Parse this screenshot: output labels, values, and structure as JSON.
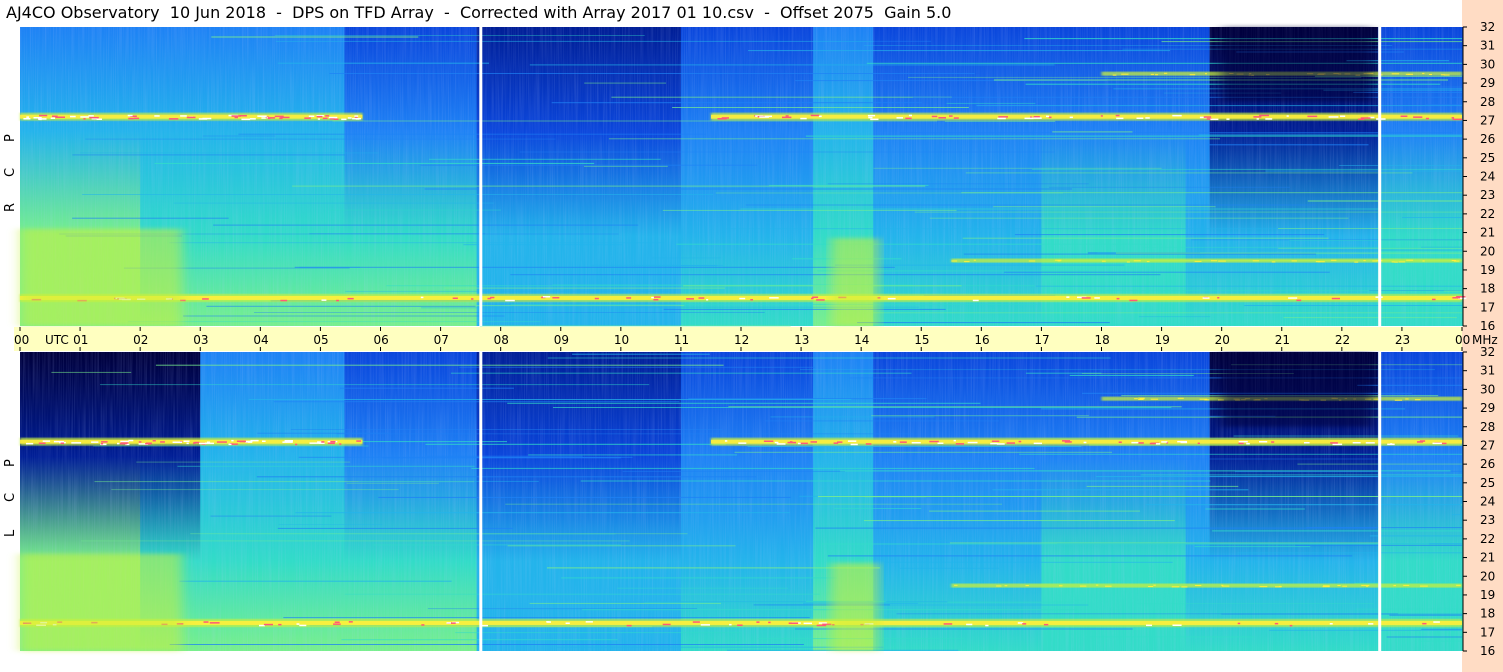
{
  "title": "AJ4CO Observatory  10 Jun 2018  -  DPS on TFD Array  -  Corrected with Array 2017 01 10.csv  -  Offset 2075  Gain 5.0",
  "chart_data": {
    "type": "heatmap",
    "title": "AJ4CO Observatory  10 Jun 2018  -  DPS on TFD Array  -  Corrected with Array 2017 01 10.csv  -  Offset 2075  Gain 5.0",
    "x_axis": {
      "unit_label": "UTC",
      "range": [
        0,
        24
      ],
      "tick_labels": [
        "00",
        "01",
        "02",
        "03",
        "04",
        "05",
        "06",
        "07",
        "08",
        "09",
        "10",
        "11",
        "12",
        "13",
        "14",
        "15",
        "16",
        "17",
        "18",
        "19",
        "20",
        "21",
        "22",
        "23",
        "00"
      ]
    },
    "y_axis": {
      "unit_label": "MHz",
      "range": [
        16,
        32
      ],
      "tick_labels": [
        "32",
        "31",
        "30",
        "29",
        "28",
        "27",
        "26",
        "25",
        "24",
        "23",
        "22",
        "21",
        "20",
        "19",
        "18",
        "17",
        "16"
      ]
    },
    "panels": [
      {
        "name": "RCP",
        "letters": [
          "R",
          "C",
          "P"
        ]
      },
      {
        "name": "LCP",
        "letters": [
          "L",
          "C",
          "P"
        ]
      }
    ],
    "data_gaps_utc": [
      7.67,
      22.63
    ],
    "colormap": [
      "#00003c",
      "#001e96",
      "#0a46dc",
      "#1e82f5",
      "#23b4eb",
      "#32dcc8",
      "#78f08c",
      "#c8f03c",
      "#fff03c",
      "#ff5a78",
      "#ff28c8",
      "#ffffff"
    ],
    "features": [
      {
        "freq_mhz": 27.2,
        "utc_range": [
          0,
          5.7
        ],
        "intensity": "strong"
      },
      {
        "freq_mhz": 27.2,
        "utc_range": [
          11.5,
          24
        ],
        "intensity": "strong"
      },
      {
        "freq_mhz": 17.5,
        "utc_range": [
          0,
          24
        ],
        "intensity": "strong"
      },
      {
        "freq_mhz": 19.5,
        "utc_range": [
          15.5,
          24
        ],
        "intensity": "moderate"
      },
      {
        "freq_mhz": 29.5,
        "utc_range": [
          18,
          24
        ],
        "intensity": "moderate"
      },
      {
        "freq_mhz": 18.5,
        "utc_range": [
          13.5,
          14.3
        ],
        "intensity": "broadband"
      },
      {
        "freq_mhz": 19,
        "utc_range": [
          0,
          2.7
        ],
        "intensity": "broadband"
      }
    ],
    "quiet_dark_region": {
      "utc_range": [
        20,
        22.5
      ],
      "freq_range": [
        28,
        32
      ]
    }
  },
  "colors": {
    "axis_band": "#ffffc0",
    "right_strip": "#ffdcc4",
    "gap_line": "#ffffff"
  }
}
